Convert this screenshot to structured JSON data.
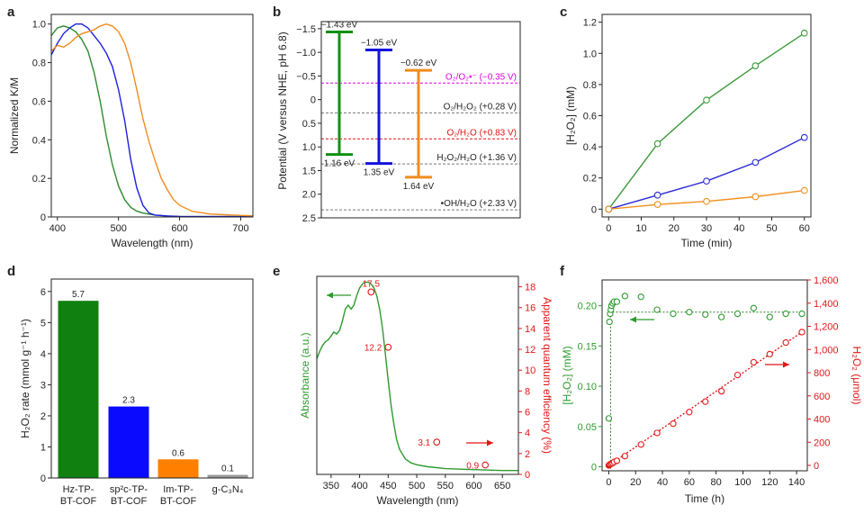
{
  "chart_data": [
    {
      "panel": "a",
      "type": "line",
      "xlabel": "Wavelength (nm)",
      "ylabel": "Normalized K/M",
      "xlim": [
        390,
        720
      ],
      "ylim": [
        0,
        1.05
      ],
      "xticks": [
        400,
        500,
        600,
        700
      ],
      "yticks": [
        0,
        0.2,
        0.4,
        0.6,
        0.8,
        1.0
      ],
      "ytick_labels": [
        "0",
        "0.2",
        "0.4",
        "0.6",
        "0.8",
        "1.0"
      ],
      "colors": {
        "green": "#2e8b2e",
        "blue": "#1f1fe0",
        "orange": "#f08c1e"
      },
      "series": [
        {
          "color": "green",
          "x": [
            390,
            400,
            410,
            420,
            430,
            440,
            450,
            460,
            470,
            480,
            490,
            500,
            510,
            520,
            530,
            540,
            560,
            580,
            600,
            650,
            700,
            720
          ],
          "y": [
            0.94,
            0.98,
            0.99,
            0.98,
            0.96,
            0.92,
            0.86,
            0.75,
            0.6,
            0.42,
            0.27,
            0.16,
            0.09,
            0.05,
            0.03,
            0.02,
            0.01,
            0.005,
            0.003,
            0.002,
            0.002,
            0.002
          ]
        },
        {
          "color": "blue",
          "x": [
            390,
            400,
            410,
            420,
            430,
            440,
            450,
            460,
            470,
            480,
            490,
            500,
            510,
            520,
            530,
            540,
            550,
            560,
            580,
            600,
            650,
            720
          ],
          "y": [
            0.84,
            0.9,
            0.95,
            0.98,
            1.0,
            1.0,
            0.98,
            0.94,
            0.9,
            0.85,
            0.78,
            0.66,
            0.5,
            0.3,
            0.15,
            0.06,
            0.02,
            0.01,
            0.005,
            0.003,
            0.002,
            0.002
          ]
        },
        {
          "color": "orange",
          "x": [
            390,
            400,
            410,
            420,
            430,
            440,
            450,
            460,
            470,
            480,
            490,
            500,
            510,
            520,
            530,
            540,
            550,
            560,
            570,
            580,
            590,
            600,
            620,
            650,
            700,
            720
          ],
          "y": [
            0.86,
            0.89,
            0.88,
            0.9,
            0.93,
            0.95,
            0.96,
            0.97,
            0.99,
            1.0,
            0.99,
            0.96,
            0.9,
            0.8,
            0.66,
            0.51,
            0.39,
            0.29,
            0.2,
            0.14,
            0.09,
            0.06,
            0.03,
            0.015,
            0.008,
            0.006
          ]
        }
      ]
    },
    {
      "panel": "b",
      "type": "diagram",
      "ylabel": "Potential (V versus NHE, pH 6.8)",
      "ylim": [
        -1.65,
        2.5
      ],
      "yticks": [
        -1.5,
        -1.0,
        -0.5,
        0,
        0.5,
        1.0,
        1.5,
        2.0,
        2.5
      ],
      "ytick_labels": [
        "−1.5",
        "−1.0",
        "−0.5",
        "0",
        "0.5",
        "1.0",
        "1.5",
        "2.0",
        "2.5"
      ],
      "bands": [
        {
          "color": "green",
          "cb": -1.43,
          "vb": 1.16,
          "cb_label": "−1.43 eV",
          "vb_label": "1.16 eV"
        },
        {
          "color": "blue",
          "cb": -1.05,
          "vb": 1.35,
          "cb_label": "−1.05 eV",
          "vb_label": "1.35 eV"
        },
        {
          "color": "orange",
          "cb": -0.62,
          "vb": 1.64,
          "cb_label": "−0.62 eV",
          "vb_label": "1.64 eV"
        }
      ],
      "levels": [
        {
          "value": -0.35,
          "color": "#e000e0",
          "label": "O₂/O₂•⁻ (−0.35 V)"
        },
        {
          "value": 0.28,
          "color": "#777777",
          "label": "O₂/H₂O₂ (+0.28 V)"
        },
        {
          "value": 0.83,
          "color": "#e01010",
          "label": "O₂/H₂O (+0.83 V)"
        },
        {
          "value": 1.36,
          "color": "#777777",
          "label": "H₂O₂/H₂O (+1.36 V)"
        },
        {
          "value": 2.33,
          "color": "#777777",
          "label": "•OH/H₂O (+2.33 V)"
        }
      ]
    },
    {
      "panel": "c",
      "type": "line",
      "xlabel": "Time (min)",
      "ylabel": "[H₂O₂] (mM)",
      "xlim": [
        -2,
        62
      ],
      "ylim": [
        -0.05,
        1.25
      ],
      "xticks": [
        0,
        10,
        20,
        30,
        40,
        50,
        60
      ],
      "yticks": [
        0,
        0.2,
        0.4,
        0.6,
        0.8,
        1.0,
        1.2
      ],
      "ytick_labels": [
        "0",
        "0.2",
        "0.4",
        "0.6",
        "0.8",
        "1.0",
        "1.2"
      ],
      "x": [
        0,
        15,
        30,
        45,
        60
      ],
      "series": [
        {
          "color": "green",
          "values": [
            0,
            0.42,
            0.7,
            0.92,
            1.13
          ]
        },
        {
          "color": "blue",
          "values": [
            0,
            0.09,
            0.18,
            0.3,
            0.46
          ]
        },
        {
          "color": "orange",
          "values": [
            0,
            0.03,
            0.05,
            0.08,
            0.12
          ]
        }
      ]
    },
    {
      "panel": "d",
      "type": "bar",
      "ylabel": "H₂O₂ rate (mmol g⁻¹ h⁻¹)",
      "ylim": [
        0,
        6.4
      ],
      "yticks": [
        0,
        1,
        2,
        3,
        4,
        5,
        6
      ],
      "categories": [
        [
          "Hz-TP-",
          "BT-COF"
        ],
        [
          "sp²c-TP-",
          "BT-COF"
        ],
        [
          "Im-TP-",
          "BT-COF"
        ],
        [
          "g-C₃N₄"
        ]
      ],
      "values": [
        5.7,
        2.3,
        0.6,
        0.1
      ],
      "value_labels": [
        "5.7",
        "2.3",
        "0.6",
        "0.1"
      ],
      "colors": [
        "#108010",
        "#0a0aff",
        "#ff8000",
        "#999999"
      ]
    },
    {
      "panel": "e",
      "type": "line",
      "xlabel": "Wavelength (nm)",
      "ylabel_left": "Absorbance (a.u.)",
      "ylabel_right": "Apparent quantum efficiency (%)",
      "xlim": [
        325,
        678
      ],
      "ylim_right": [
        0,
        19
      ],
      "xticks": [
        350,
        400,
        450,
        500,
        550,
        600,
        650
      ],
      "yticks_right": [
        0,
        2,
        4,
        6,
        8,
        10,
        12,
        14,
        16,
        18
      ],
      "absorbance": {
        "x": [
          325,
          330,
          335,
          340,
          345,
          350,
          355,
          360,
          365,
          370,
          375,
          380,
          385,
          390,
          395,
          400,
          405,
          410,
          415,
          420,
          425,
          430,
          435,
          440,
          445,
          450,
          455,
          460,
          465,
          470,
          480,
          490,
          500,
          520,
          550,
          600,
          650,
          678
        ],
        "y": [
          0.6,
          0.64,
          0.67,
          0.69,
          0.7,
          0.72,
          0.74,
          0.73,
          0.75,
          0.8,
          0.86,
          0.88,
          0.86,
          0.88,
          0.93,
          0.97,
          0.99,
          1.0,
          1.0,
          0.99,
          0.97,
          0.93,
          0.86,
          0.76,
          0.63,
          0.49,
          0.36,
          0.26,
          0.18,
          0.13,
          0.08,
          0.06,
          0.05,
          0.04,
          0.03,
          0.025,
          0.02,
          0.02
        ]
      },
      "aqe_points": [
        {
          "x": 420,
          "y": 17.5,
          "label": "17.5"
        },
        {
          "x": 450,
          "y": 12.2,
          "label": "12.2"
        },
        {
          "x": 535,
          "y": 3.1,
          "label": "3.1"
        },
        {
          "x": 620,
          "y": 0.9,
          "label": "0.9"
        }
      ]
    },
    {
      "panel": "f",
      "type": "scatter",
      "xlabel": "Time (h)",
      "ylabel_left": "[H₂O₂] (mM)",
      "ylabel_right": "H₂O₂ (μmol)",
      "xlim": [
        -5,
        148
      ],
      "ylim_left": [
        -0.005,
        0.232
      ],
      "ylim_right": [
        -46.4,
        1600
      ],
      "xticks": [
        0,
        20,
        40,
        60,
        80,
        100,
        120,
        140
      ],
      "yticks_left": [
        0,
        0.05,
        0.1,
        0.15,
        0.2
      ],
      "ytick_labels_left": [
        "0",
        "0.05",
        "0.10",
        "0.15",
        "0.20"
      ],
      "yticks_right": [
        0,
        200,
        400,
        600,
        800,
        1000,
        1200,
        1400,
        1600
      ],
      "ytick_labels_right": [
        "0",
        "200",
        "400",
        "600",
        "800",
        "1,000",
        "1,200",
        "1,400",
        "1,600"
      ],
      "plateau": 0.192,
      "concentration": {
        "x": [
          0,
          0.5,
          1,
          1.5,
          2,
          3,
          4,
          6,
          12,
          24,
          36,
          48,
          60,
          72,
          84,
          96,
          108,
          120,
          132,
          144
        ],
        "y": [
          0.06,
          0.18,
          0.19,
          0.195,
          0.2,
          0.203,
          0.205,
          0.205,
          0.212,
          0.211,
          0.195,
          0.19,
          0.192,
          0.189,
          0.186,
          0.19,
          0.197,
          0.186,
          0.19,
          0.19
        ]
      },
      "amount": {
        "x": [
          0,
          0.5,
          1,
          2,
          3,
          4,
          6,
          12,
          24,
          36,
          48,
          60,
          72,
          84,
          96,
          108,
          120,
          132,
          144
        ],
        "y": [
          0,
          5,
          10,
          15,
          20,
          30,
          40,
          80,
          180,
          280,
          360,
          460,
          550,
          640,
          780,
          890,
          960,
          1060,
          1150
        ]
      }
    }
  ]
}
